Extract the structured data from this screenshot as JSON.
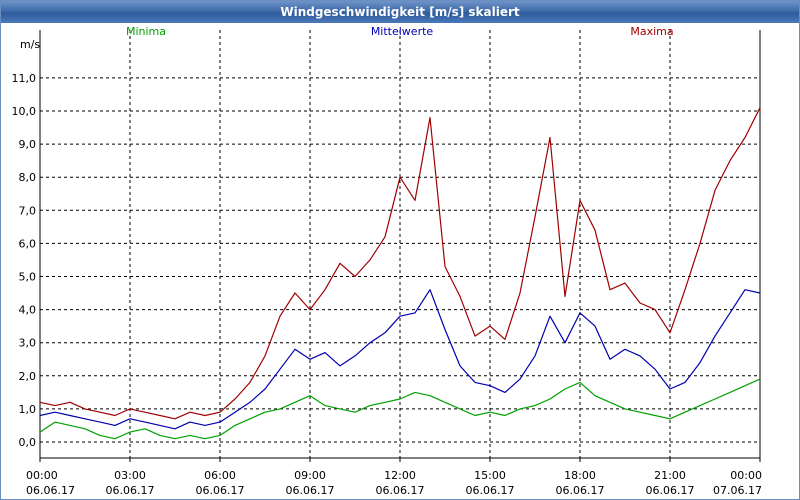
{
  "window": {
    "title": "Windgeschwindigkeit [m/s] skaliert"
  },
  "chart_data": {
    "type": "line",
    "title": "Windgeschwindigkeit [m/s] skaliert",
    "ylabel": "m/s",
    "xlabel": "",
    "ylim": [
      -0.5,
      12.0
    ],
    "xlim": [
      0,
      24
    ],
    "yticks": [
      0,
      1,
      2,
      3,
      4,
      5,
      6,
      7,
      8,
      9,
      10,
      11
    ],
    "yticklabels": [
      "0,0",
      "1,0",
      "2,0",
      "3,0",
      "4,0",
      "5,0",
      "6,0",
      "7,0",
      "8,0",
      "9,0",
      "10,0",
      "11,0"
    ],
    "xticks": [
      0,
      3,
      6,
      9,
      12,
      15,
      18,
      21,
      24
    ],
    "xtick_times": [
      "00:00",
      "03:00",
      "06:00",
      "09:00",
      "12:00",
      "15:00",
      "18:00",
      "21:00",
      "00:00"
    ],
    "xtick_dates": [
      "06.06.17",
      "06.06.17",
      "06.06.17",
      "06.06.17",
      "06.06.17",
      "06.06.17",
      "06.06.17",
      "06.06.17",
      "07.06.17"
    ],
    "grid": true,
    "colors": {
      "Minima": "#00a000",
      "Mittelwerte": "#0000b0",
      "Maxima": "#a00000",
      "grid": "#000000"
    },
    "series": [
      {
        "name": "Minima",
        "color": "#00a000",
        "x": [
          0,
          0.5,
          1,
          1.5,
          2,
          2.5,
          3,
          3.5,
          4,
          4.5,
          5,
          5.5,
          6,
          6.5,
          7,
          7.5,
          8,
          8.5,
          9,
          9.5,
          10,
          10.5,
          11,
          11.5,
          12,
          12.5,
          13,
          13.5,
          14,
          14.5,
          15,
          15.5,
          16,
          16.5,
          17,
          17.5,
          18,
          18.5,
          19,
          19.5,
          20,
          20.5,
          21,
          21.5,
          22,
          22.5,
          23,
          23.5,
          24
        ],
        "values": [
          0.3,
          0.6,
          0.5,
          0.4,
          0.2,
          0.1,
          0.3,
          0.4,
          0.2,
          0.1,
          0.2,
          0.1,
          0.2,
          0.5,
          0.7,
          0.9,
          1.0,
          1.2,
          1.4,
          1.1,
          1.0,
          0.9,
          1.1,
          1.2,
          1.3,
          1.5,
          1.4,
          1.2,
          1.0,
          0.8,
          0.9,
          0.8,
          1.0,
          1.1,
          1.3,
          1.6,
          1.8,
          1.4,
          1.2,
          1.0,
          0.9,
          0.8,
          0.7,
          0.9,
          1.1,
          1.3,
          1.5,
          1.7,
          1.9
        ]
      },
      {
        "name": "Mittelwerte",
        "color": "#0000b0",
        "x": [
          0,
          0.5,
          1,
          1.5,
          2,
          2.5,
          3,
          3.5,
          4,
          4.5,
          5,
          5.5,
          6,
          6.5,
          7,
          7.5,
          8,
          8.5,
          9,
          9.5,
          10,
          10.5,
          11,
          11.5,
          12,
          12.5,
          13,
          13.5,
          14,
          14.5,
          15,
          15.5,
          16,
          16.5,
          17,
          17.5,
          18,
          18.5,
          19,
          19.5,
          20,
          20.5,
          21,
          21.5,
          22,
          22.5,
          23,
          23.5,
          24
        ],
        "values": [
          0.8,
          0.9,
          0.8,
          0.7,
          0.6,
          0.5,
          0.7,
          0.6,
          0.5,
          0.4,
          0.6,
          0.5,
          0.6,
          0.9,
          1.2,
          1.6,
          2.2,
          2.8,
          2.5,
          2.7,
          2.3,
          2.6,
          3.0,
          3.3,
          3.8,
          3.9,
          4.6,
          3.4,
          2.3,
          1.8,
          1.7,
          1.5,
          1.9,
          2.6,
          3.8,
          3.0,
          3.9,
          3.5,
          2.5,
          2.8,
          2.6,
          2.2,
          1.6,
          1.8,
          2.4,
          3.2,
          3.9,
          4.6,
          4.5
        ]
      },
      {
        "name": "Maxima",
        "color": "#a00000",
        "x": [
          0,
          0.5,
          1,
          1.5,
          2,
          2.5,
          3,
          3.5,
          4,
          4.5,
          5,
          5.5,
          6,
          6.5,
          7,
          7.5,
          8,
          8.5,
          9,
          9.5,
          10,
          10.5,
          11,
          11.5,
          12,
          12.5,
          13,
          13.5,
          14,
          14.5,
          15,
          15.5,
          16,
          16.5,
          17,
          17.5,
          18,
          18.5,
          19,
          19.5,
          20,
          20.5,
          21,
          21.5,
          22,
          22.5,
          23,
          23.5,
          24
        ],
        "values": [
          1.2,
          1.1,
          1.2,
          1.0,
          0.9,
          0.8,
          1.0,
          0.9,
          0.8,
          0.7,
          0.9,
          0.8,
          0.9,
          1.3,
          1.8,
          2.6,
          3.8,
          4.5,
          4.0,
          4.6,
          5.4,
          5.0,
          5.5,
          6.2,
          8.0,
          7.3,
          9.8,
          5.3,
          4.4,
          3.2,
          3.5,
          3.1,
          4.5,
          6.8,
          9.2,
          4.4,
          7.3,
          6.4,
          4.6,
          4.8,
          4.2,
          4.0,
          3.3,
          4.6,
          6.0,
          7.6,
          8.5,
          9.2,
          10.1
        ]
      }
    ]
  }
}
